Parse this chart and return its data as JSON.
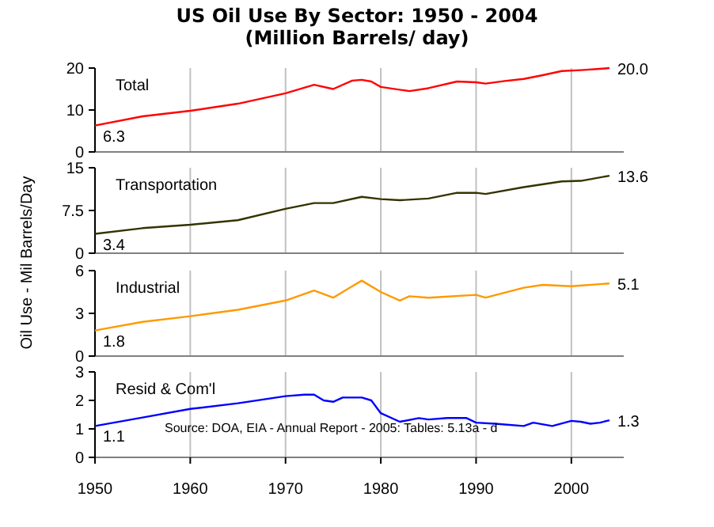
{
  "chart_data": [
    {
      "type": "line",
      "title": "US Oil Use By Sector: 1950 - 2004",
      "subtitle": "(Million Barrels/ day)",
      "xlim": [
        1950,
        2005.5
      ],
      "xticks": [
        1950,
        1960,
        1970,
        1980,
        1990,
        2000
      ],
      "ylim": [
        0,
        20
      ],
      "yticks": [
        0,
        10,
        20
      ],
      "grid": "x",
      "tick_labels": "y",
      "series": [
        {
          "name": "Total",
          "color": "#ff0000",
          "x": [
            1950,
            1955,
            1960,
            1965,
            1970,
            1973,
            1975,
            1977,
            1978,
            1979,
            1980,
            1983,
            1985,
            1988,
            1990,
            1991,
            1993,
            1995,
            1997,
            1999,
            2001,
            2003,
            2004
          ],
          "values": [
            6.3,
            8.5,
            9.8,
            11.5,
            14.0,
            16.0,
            15.0,
            17.0,
            17.2,
            16.8,
            15.5,
            14.5,
            15.2,
            16.8,
            16.6,
            16.3,
            16.9,
            17.4,
            18.3,
            19.3,
            19.5,
            19.8,
            20.0
          ],
          "value_labels": [
            "6.3",
            null,
            null,
            null,
            null,
            null,
            null,
            null,
            null,
            null,
            null,
            null,
            null,
            null,
            null,
            null,
            null,
            null,
            null,
            null,
            null,
            null,
            "20.0"
          ]
        }
      ]
    },
    {
      "type": "line",
      "ylabel": "Oil Use - Mil Barrels/Day",
      "xlim": [
        1950,
        2005.5
      ],
      "xticks": [
        1950,
        1960,
        1970,
        1980,
        1990,
        2000
      ],
      "ylim": [
        0,
        15
      ],
      "yticks": [
        0,
        7.5,
        15
      ],
      "grid": "x",
      "tick_labels": "y",
      "series": [
        {
          "name": "Transportation",
          "color": "#333300",
          "x": [
            1950,
            1955,
            1960,
            1965,
            1970,
            1973,
            1975,
            1978,
            1980,
            1982,
            1985,
            1988,
            1990,
            1991,
            1995,
            1999,
            2001,
            2004
          ],
          "values": [
            3.4,
            4.4,
            5.0,
            5.8,
            7.8,
            8.8,
            8.8,
            9.9,
            9.5,
            9.3,
            9.6,
            10.6,
            10.6,
            10.4,
            11.6,
            12.6,
            12.7,
            13.6
          ],
          "value_labels": [
            "3.4",
            null,
            null,
            null,
            null,
            null,
            null,
            null,
            null,
            null,
            null,
            null,
            null,
            null,
            null,
            null,
            null,
            "13.6"
          ]
        }
      ]
    },
    {
      "type": "line",
      "xlim": [
        1950,
        2005.5
      ],
      "xticks": [
        1950,
        1960,
        1970,
        1980,
        1990,
        2000
      ],
      "ylim": [
        0,
        6
      ],
      "yticks": [
        0,
        3,
        6
      ],
      "grid": "x",
      "tick_labels": "y",
      "series": [
        {
          "name": "Industrial",
          "color": "#ff9900",
          "x": [
            1950,
            1955,
            1960,
            1965,
            1970,
            1973,
            1975,
            1977,
            1978,
            1980,
            1982,
            1983,
            1985,
            1990,
            1991,
            1995,
            1997,
            2000,
            2004
          ],
          "values": [
            1.8,
            2.4,
            2.8,
            3.25,
            3.9,
            4.6,
            4.1,
            4.9,
            5.3,
            4.5,
            3.9,
            4.2,
            4.1,
            4.3,
            4.1,
            4.8,
            5.0,
            4.9,
            5.1
          ],
          "value_labels": [
            "1.8",
            null,
            null,
            null,
            null,
            null,
            null,
            null,
            null,
            null,
            null,
            null,
            null,
            null,
            null,
            null,
            null,
            null,
            "5.1"
          ]
        }
      ]
    },
    {
      "type": "line",
      "xlim": [
        1950,
        2005.5
      ],
      "xticks": [
        1950,
        1960,
        1970,
        1980,
        1990,
        2000
      ],
      "ylim": [
        0,
        3
      ],
      "yticks": [
        0,
        1,
        2,
        3
      ],
      "grid": "x",
      "annotations": [
        "Source: DOA, EIA - Annual Report - 2005: Tables: 5.13a - d"
      ],
      "series": [
        {
          "name": "Resid & Com'l",
          "color": "#0000ff",
          "x": [
            1950,
            1955,
            1960,
            1965,
            1970,
            1972,
            1973,
            1974,
            1975,
            1976,
            1978,
            1979,
            1980,
            1982,
            1984,
            1985,
            1987,
            1989,
            1990,
            1992,
            1995,
            1996,
            1998,
            2000,
            2001,
            2002,
            2003,
            2004
          ],
          "values": [
            1.1,
            1.4,
            1.7,
            1.9,
            2.15,
            2.2,
            2.2,
            2.0,
            1.95,
            2.1,
            2.1,
            2.0,
            1.55,
            1.25,
            1.38,
            1.33,
            1.38,
            1.38,
            1.22,
            1.18,
            1.1,
            1.22,
            1.1,
            1.28,
            1.25,
            1.18,
            1.22,
            1.3
          ],
          "value_labels": [
            "1.1",
            null,
            null,
            null,
            null,
            null,
            null,
            null,
            null,
            null,
            null,
            null,
            null,
            null,
            null,
            null,
            null,
            null,
            null,
            null,
            null,
            null,
            null,
            null,
            null,
            null,
            null,
            "1.3"
          ]
        }
      ]
    }
  ]
}
